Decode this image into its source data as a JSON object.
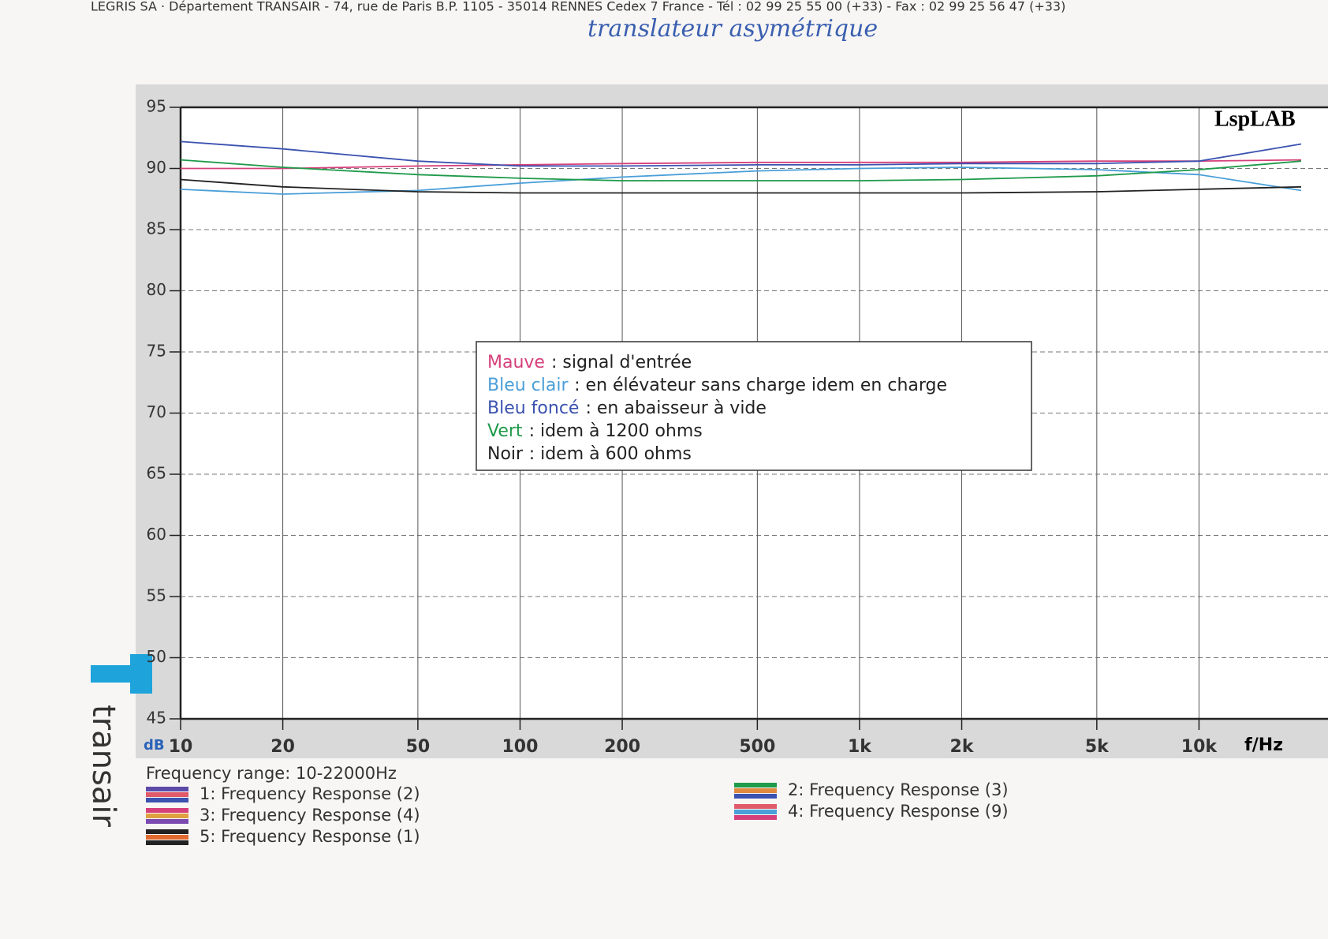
{
  "header": "LEGRIS SA · Département TRANSAIR - 74, rue de Paris B.P. 1105 - 35014 RENNES Cedex 7 France - Tél : 02 99 25 55 00 (+33) - Fax : 02 99 25 56 47 (+33)",
  "handwritten_note": "translateur asymétrique",
  "brand": "transair",
  "chart_data": {
    "type": "line",
    "title": "LspLAB",
    "x_label": "f/Hz",
    "y_label": "dB",
    "log_x": true,
    "grid": true,
    "x": [
      10,
      20,
      50,
      100,
      200,
      500,
      1000,
      2000,
      5000,
      10000,
      20000
    ],
    "xlim": [
      10,
      20000
    ],
    "xticks": [
      10,
      20,
      50,
      100,
      200,
      500,
      {
        "value": 1000,
        "label": "1k"
      },
      {
        "value": 2000,
        "label": "2k"
      },
      {
        "value": 5000,
        "label": "5k"
      },
      {
        "value": 10000,
        "label": "10k"
      }
    ],
    "ylim": [
      45,
      95
    ],
    "yticks": [
      45,
      50,
      55,
      60,
      65,
      70,
      75,
      80,
      85,
      90,
      95
    ],
    "series": [
      {
        "name": "Mauve",
        "description": ": signal d'entrée",
        "color": "#d6407a",
        "values": [
          90,
          90,
          90.2,
          90.3,
          90.4,
          90.5,
          90.5,
          90.5,
          90.6,
          90.6,
          90.7
        ]
      },
      {
        "name": "Bleu clair",
        "description": ": en élévateur sans charge idem en charge",
        "color": "#4a9fd8",
        "values": [
          88.3,
          87.9,
          88.2,
          88.8,
          89.3,
          89.8,
          90,
          90.1,
          89.9,
          89.5,
          88.2
        ]
      },
      {
        "name": "Bleu foncé",
        "description": ": en abaisseur à vide",
        "color": "#3b52b0",
        "values": [
          92.2,
          91.6,
          90.6,
          90.2,
          90.2,
          90.3,
          90.3,
          90.4,
          90.4,
          90.6,
          92
        ]
      },
      {
        "name": "Vert",
        "description": ": idem à 1200 ohms",
        "color": "#1e9a4a",
        "values": [
          90.7,
          90.1,
          89.5,
          89.2,
          89,
          89,
          89,
          89.1,
          89.4,
          89.9,
          90.6
        ]
      },
      {
        "name": "Noir",
        "description": ": idem à 600 ohms",
        "color": "#222222",
        "values": [
          89.1,
          88.5,
          88.1,
          88,
          88,
          88,
          88,
          88,
          88.1,
          88.3,
          88.5
        ]
      }
    ],
    "frequency_range": "Frequency range: 10-22000Hz",
    "traces": [
      "1: Frequency Response (2)",
      "2: Frequency Response (3)",
      "3: Frequency Response (4)",
      "4: Frequency Response (9)",
      "5: Frequency Response (1)"
    ]
  }
}
